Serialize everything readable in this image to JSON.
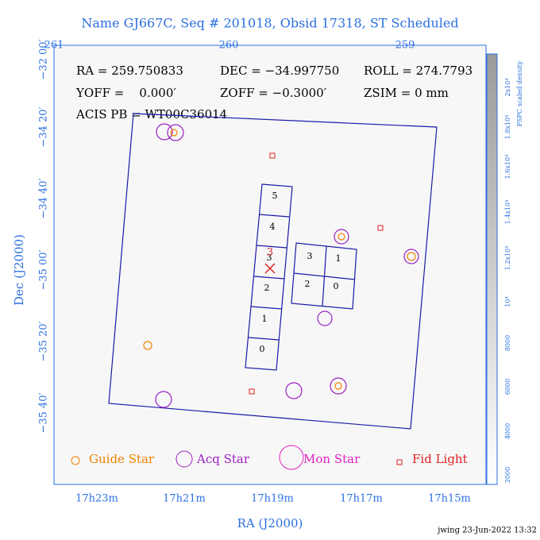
{
  "header": {
    "title": "Name GJ667C, Seq # 201018, Obsid 17318, ST Scheduled"
  },
  "top_axis": {
    "labels": [
      "261",
      "260",
      "259"
    ]
  },
  "left_axis": {
    "title": "Dec (J2000)",
    "labels": [
      "−32 00′",
      "−34 20′",
      "−34 40′",
      "−35 00′",
      "−35 20′",
      "−35 40′"
    ]
  },
  "bottom_axis": {
    "title": "RA (J2000)",
    "labels": [
      "17h23m",
      "17h21m",
      "17h19m",
      "17h17m",
      "17h15m"
    ]
  },
  "info": [
    "RA = 259.750833",
    "DEC = −34.997750",
    "ROLL = 274.7793",
    "YOFF =    0.000′",
    "ZOFF = −0.3000′",
    "ZSIM = 0 mm",
    "ACIS PB = WT00C36014"
  ],
  "chips": {
    "column": [
      "5",
      "4",
      "3",
      "2",
      "1",
      "0"
    ],
    "block": [
      "3",
      "1",
      "2",
      "0"
    ]
  },
  "marker_label": "3",
  "legend": [
    "Guide Star",
    "Acq Star",
    "Mon Star",
    "Fid Light"
  ],
  "colorbar": {
    "title": "PSPC scaled density",
    "labels": [
      "2000",
      "4000",
      "6000",
      "8000",
      "10⁴",
      "1.2x10⁴",
      "1.4x10⁴",
      "1.6x10⁴",
      "1.8x10⁴",
      "2x10⁴"
    ]
  },
  "footer": "jwing 23-Jun-2022 13:32"
}
